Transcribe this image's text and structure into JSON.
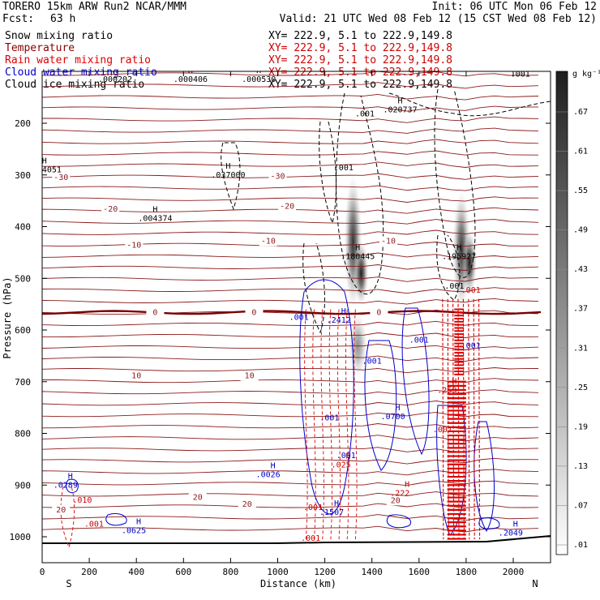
{
  "header": {
    "model": "TORERO  15km ARW   Run2    NCAR/MMM",
    "init": "Init: 06 UTC Mon 06 Feb 12",
    "fcst_label": "Fcst:",
    "fcst_value": "63 h",
    "valid": "Valid: 21 UTC Wed 08 Feb 12 (15 CST Wed 08 Feb 12)"
  },
  "fields": [
    {
      "name": "Snow mixing ratio",
      "color": "#000000",
      "xy": "XY= 222.9,  5.1 to 222.9,149.8",
      "xy_color": "#000000"
    },
    {
      "name": "Temperature",
      "color": "#8b0000",
      "xy": "XY= 222.9,  5.1 to 222.9,149.8",
      "xy_color": "#cc0000"
    },
    {
      "name": "Rain water mixing ratio",
      "color": "#dd0000",
      "xy": "XY= 222.9,  5.1 to 222.9,149.8",
      "xy_color": "#cc0000"
    },
    {
      "name": "Cloud water mixing ratio",
      "color": "#0000cc",
      "xy": "XY= 222.9,  5.1 to 222.9,149.8",
      "xy_color": "#cc0000"
    },
    {
      "name": "Cloud ice mixing ratio",
      "color": "#000000",
      "xy": "XY= 222.9,  5.1 to 222.9,149.8",
      "xy_color": "#000000"
    }
  ],
  "chart_data": {
    "type": "heatmap",
    "xlabel": "Distance (km)",
    "ylabel": "Pressure (hPa)",
    "x_ticks": [
      0,
      200,
      400,
      600,
      800,
      1000,
      1200,
      1400,
      1600,
      1800,
      2000
    ],
    "y_ticks": [
      200,
      300,
      400,
      500,
      600,
      700,
      800,
      900,
      1000
    ],
    "x_end_labels": {
      "left": "S",
      "right": "N"
    },
    "colorbar": {
      "unit": "g kg⁻¹",
      "labels": [
        ".67",
        ".61",
        ".55",
        ".49",
        ".43",
        ".37",
        ".31",
        ".25",
        ".19",
        ".13",
        ".07",
        ".01"
      ]
    },
    "temperature_isotherms": [
      {
        "label": "-30",
        "marks": [
          {
            "x": 80,
            "p": 305
          },
          {
            "x": 1000,
            "p": 303
          }
        ]
      },
      {
        "label": "-20",
        "marks": [
          {
            "x": 290,
            "p": 366
          },
          {
            "x": 1040,
            "p": 361
          }
        ]
      },
      {
        "label": "-10",
        "marks": [
          {
            "x": 390,
            "p": 436
          },
          {
            "x": 960,
            "p": 428
          },
          {
            "x": 1470,
            "p": 428
          }
        ]
      },
      {
        "label": "0",
        "marks": [
          {
            "x": 480,
            "p": 566
          },
          {
            "x": 900,
            "p": 566
          },
          {
            "x": 1430,
            "p": 566
          }
        ]
      },
      {
        "label": "10",
        "marks": [
          {
            "x": 400,
            "p": 689
          },
          {
            "x": 880,
            "p": 689
          }
        ]
      },
      {
        "label": "20",
        "marks": [
          {
            "x": 80,
            "p": 948
          },
          {
            "x": 660,
            "p": 924
          },
          {
            "x": 870,
            "p": 937
          },
          {
            "x": 1500,
            "p": 930
          }
        ]
      }
    ],
    "maxima": [
      {
        "value": ".000202",
        "x": 320,
        "p": 115,
        "color": "#000000"
      },
      {
        "value": ".000406",
        "x": 640,
        "p": 115,
        "color": "#000000"
      },
      {
        "value": ".000530",
        "x": 930,
        "p": 115,
        "color": "#000000"
      },
      {
        "value": ".020737",
        "x": 1530,
        "p": 174,
        "color": "#000000"
      },
      {
        "value": ".004051",
        "x": 20,
        "p": 290,
        "color": "#000000"
      },
      {
        "value": ".037000",
        "x": 800,
        "p": 300,
        "color": "#000000"
      },
      {
        "value": ".004374",
        "x": 490,
        "p": 384,
        "color": "#000000"
      },
      {
        "value": ".180445",
        "x": 1350,
        "p": 458,
        "color": "#000000"
      },
      {
        "value": ".195927",
        "x": 1780,
        "p": 458,
        "color": "#000000"
      },
      {
        "value": ".2412",
        "x": 1290,
        "p": 581,
        "color": "#0000cc"
      },
      {
        "value": ".0700",
        "x": 1520,
        "p": 768,
        "color": "#0000cc"
      },
      {
        "value": ".259",
        "x": 1760,
        "p": 717,
        "color": "#cc0000"
      },
      {
        "value": ".0289",
        "x": 130,
        "p": 900,
        "color": "#0000cc"
      },
      {
        "value": ".0026",
        "x": 990,
        "p": 880,
        "color": "#0000cc"
      },
      {
        "value": ".0625",
        "x": 420,
        "p": 988,
        "color": "#0000cc"
      },
      {
        "value": ".2049",
        "x": 2020,
        "p": 993,
        "color": "#0000cc"
      },
      {
        "value": ".1507",
        "x": 1260,
        "p": 953,
        "color": "#0000cc"
      },
      {
        "value": ".222",
        "x": 1560,
        "p": 916,
        "color": "#cc0000"
      },
      {
        "value": ".025",
        "x": 1310,
        "p": 861,
        "color": "#cc0000"
      }
    ],
    "contour_labels": [
      {
        "text": ".001",
        "x": 2030,
        "p": 110,
        "color": "#000000"
      },
      {
        "text": ".001",
        "x": 1370,
        "p": 187,
        "color": "#000000"
      },
      {
        "text": ".001",
        "x": 1280,
        "p": 291,
        "color": "#000000"
      },
      {
        "text": ".001",
        "x": 1750,
        "p": 520,
        "color": "#000000"
      },
      {
        "text": ".001",
        "x": 1090,
        "p": 580,
        "color": "#0000cc"
      },
      {
        "text": ".001",
        "x": 1600,
        "p": 624,
        "color": "#0000cc"
      },
      {
        "text": ".001",
        "x": 1400,
        "p": 665,
        "color": "#0000cc"
      },
      {
        "text": ".001",
        "x": 1220,
        "p": 775,
        "color": "#0000cc"
      },
      {
        "text": ".001",
        "x": 1820,
        "p": 635,
        "color": "#0000cc"
      },
      {
        "text": ".001",
        "x": 1290,
        "p": 848,
        "color": "#0000cc"
      },
      {
        "text": ".001",
        "x": 1150,
        "p": 948,
        "color": "#cc0000"
      },
      {
        "text": ".001",
        "x": 1140,
        "p": 1008,
        "color": "#cc0000"
      },
      {
        "text": ".001",
        "x": 220,
        "p": 980,
        "color": "#cc0000"
      },
      {
        "text": ".010",
        "x": 170,
        "p": 934,
        "color": "#cc0000"
      },
      {
        "text": ".001",
        "x": 1820,
        "p": 528,
        "color": "#cc0000"
      },
      {
        "text": ".001",
        "x": 1700,
        "p": 798,
        "color": "#cc0000"
      }
    ]
  }
}
